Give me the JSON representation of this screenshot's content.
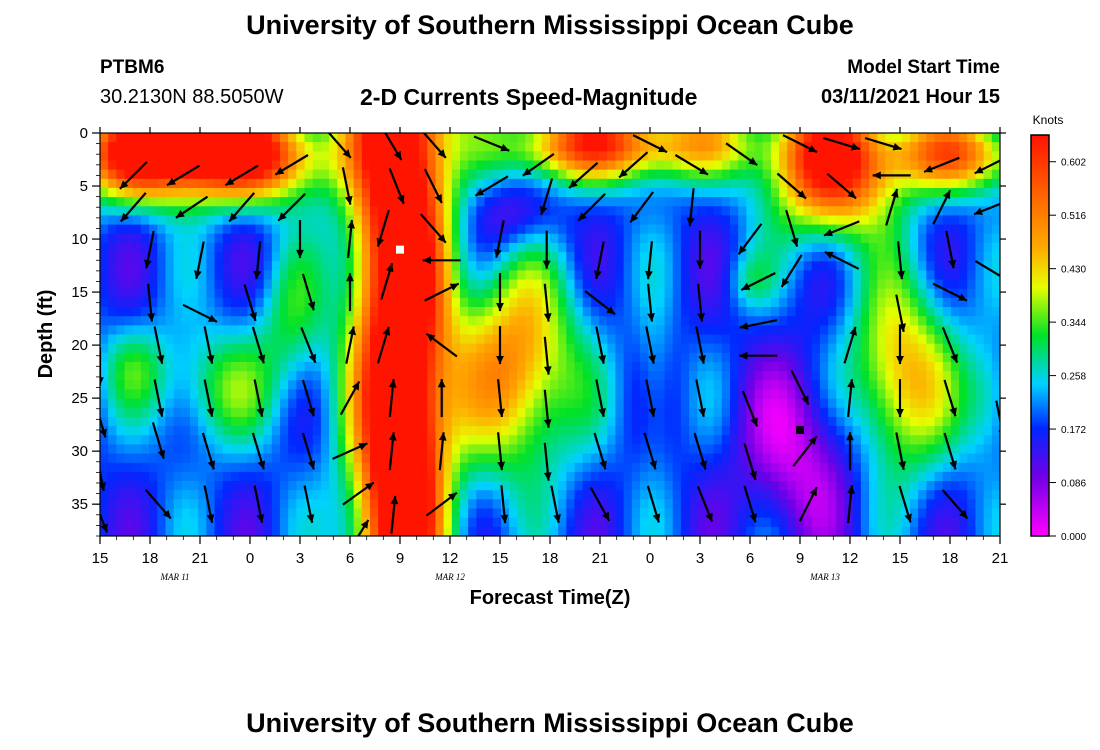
{
  "header": {
    "title": "University of Southern Mississippi Ocean Cube",
    "station_id": "PTBM6",
    "station_coords": "30.2130N 88.5050W",
    "plot_title": "2-D Currents Speed-Magnitude",
    "model_start_label": "Model Start Time",
    "model_start_time": "03/11/2021 Hour 15"
  },
  "footer": {
    "title": "University of Southern Mississippi Ocean Cube"
  },
  "chart_data": {
    "type": "heatmap",
    "title": "2-D Currents Speed-Magnitude",
    "xlabel": "Forecast Time(Z)",
    "ylabel": "Depth (ft)",
    "x_range_hours": [
      0,
      54
    ],
    "x_ticks": [
      {
        "hour": 0,
        "label": "15"
      },
      {
        "hour": 3,
        "label": "18"
      },
      {
        "hour": 6,
        "label": "21"
      },
      {
        "hour": 9,
        "label": "0"
      },
      {
        "hour": 12,
        "label": "3"
      },
      {
        "hour": 15,
        "label": "6"
      },
      {
        "hour": 18,
        "label": "9"
      },
      {
        "hour": 21,
        "label": "12"
      },
      {
        "hour": 24,
        "label": "15"
      },
      {
        "hour": 27,
        "label": "18"
      },
      {
        "hour": 30,
        "label": "21"
      },
      {
        "hour": 33,
        "label": "0"
      },
      {
        "hour": 36,
        "label": "3"
      },
      {
        "hour": 39,
        "label": "6"
      },
      {
        "hour": 42,
        "label": "9"
      },
      {
        "hour": 45,
        "label": "12"
      },
      {
        "hour": 48,
        "label": "15"
      },
      {
        "hour": 51,
        "label": "18"
      },
      {
        "hour": 54,
        "label": "21"
      }
    ],
    "date_labels": [
      {
        "hour": 4.5,
        "label": "MAR 11"
      },
      {
        "hour": 21,
        "label": "MAR 12"
      },
      {
        "hour": 43.5,
        "label": "MAR 13"
      }
    ],
    "y_range": [
      0,
      38
    ],
    "y_ticks": [
      0,
      5,
      10,
      15,
      20,
      25,
      30,
      35
    ],
    "colorbar": {
      "title": "Knots",
      "min": 0.0,
      "max": 0.645,
      "tick_values": [
        0.0,
        0.086,
        0.172,
        0.258,
        0.344,
        0.43,
        0.516,
        0.602
      ],
      "tick_labels": [
        "0.000",
        "0.086",
        "0.172",
        "0.258",
        "0.344",
        "0.430",
        "0.516",
        "0.602"
      ]
    },
    "speed_features": [
      {
        "hour": 18.0,
        "depth": 8,
        "sx": 2.0,
        "sy": 60,
        "amp": 0.62
      },
      {
        "hour": 18.2,
        "depth": 30,
        "sx": 1.2,
        "sy": 6,
        "amp": 0.15
      },
      {
        "hour": 2.5,
        "depth": 2,
        "sx": 3.0,
        "sy": 3.0,
        "amp": 0.5
      },
      {
        "hour": 9.0,
        "depth": 2,
        "sx": 3.2,
        "sy": 3.0,
        "amp": 0.5
      },
      {
        "hour": 6.0,
        "depth": 1,
        "sx": 1.5,
        "sy": 2.0,
        "amp": 0.1
      },
      {
        "hour": 7.0,
        "depth": 24,
        "sx": 2.5,
        "sy": 4.0,
        "amp": 0.15
      },
      {
        "hour": 2.0,
        "depth": 22,
        "sx": 1.5,
        "sy": 3.0,
        "amp": 0.1
      },
      {
        "hour": 11.5,
        "depth": 18,
        "sx": 1.5,
        "sy": 5.0,
        "amp": 0.12
      },
      {
        "hour": 25.0,
        "depth": 22,
        "sx": 2.6,
        "sy": 7.0,
        "amp": 0.33
      },
      {
        "hour": 25.0,
        "depth": 8,
        "sx": 1.8,
        "sy": 2.5,
        "amp": -0.1
      },
      {
        "hour": 33.0,
        "depth": 1,
        "sx": 5.0,
        "sy": 2.5,
        "amp": 0.3
      },
      {
        "hour": 28.0,
        "depth": 1,
        "sx": 3.0,
        "sy": 2.5,
        "amp": 0.2
      },
      {
        "hour": 33.3,
        "depth": 24,
        "sx": 0.8,
        "sy": 5.0,
        "amp": 0.08
      },
      {
        "hour": 44.0,
        "depth": 3,
        "sx": 2.6,
        "sy": 4.5,
        "amp": 0.48
      },
      {
        "hour": 51.5,
        "depth": 2,
        "sx": 3.0,
        "sy": 2.5,
        "amp": 0.35
      },
      {
        "hour": 48.0,
        "depth": 23,
        "sx": 2.2,
        "sy": 6.5,
        "amp": 0.3
      },
      {
        "hour": 42.0,
        "depth": 30,
        "sx": 2.5,
        "sy": 6.0,
        "amp": -0.15
      },
      {
        "hour": 39.0,
        "depth": 14,
        "sx": 1.0,
        "sy": 2.0,
        "amp": 0.08
      },
      {
        "hour": 53.5,
        "depth": 25,
        "sx": 1.2,
        "sy": 4.0,
        "amp": 0.12
      }
    ],
    "vectors": [
      {
        "hour": 0,
        "depth": 22,
        "dx": 0.0,
        "dy": -1.0
      },
      {
        "hour": 0,
        "depth": 27,
        "dx": 0.3,
        "dy": -1.0
      },
      {
        "hour": 0,
        "depth": 32,
        "dx": 0.2,
        "dy": -1.0
      },
      {
        "hour": 0,
        "depth": 36,
        "dx": 0.4,
        "dy": -1.0
      },
      {
        "hour": 2,
        "depth": 4,
        "dx": -0.8,
        "dy": -0.8
      },
      {
        "hour": 2,
        "depth": 7,
        "dx": -0.7,
        "dy": -0.8
      },
      {
        "hour": 3,
        "depth": 11,
        "dx": -0.2,
        "dy": -1.0
      },
      {
        "hour": 3,
        "depth": 16,
        "dx": 0.1,
        "dy": -1.0
      },
      {
        "hour": 3.5,
        "depth": 20,
        "dx": 0.2,
        "dy": -1.0
      },
      {
        "hour": 3.5,
        "depth": 25,
        "dx": 0.2,
        "dy": -1.0
      },
      {
        "hour": 3.5,
        "depth": 29,
        "dx": 0.3,
        "dy": -1.0
      },
      {
        "hour": 3.5,
        "depth": 35,
        "dx": 0.7,
        "dy": -0.8
      },
      {
        "hour": 5,
        "depth": 4,
        "dx": -1.0,
        "dy": -0.6
      },
      {
        "hour": 5.5,
        "depth": 7,
        "dx": -0.9,
        "dy": -0.6
      },
      {
        "hour": 6,
        "depth": 12,
        "dx": -0.2,
        "dy": -1.0
      },
      {
        "hour": 6,
        "depth": 17,
        "dx": 0.8,
        "dy": -0.4
      },
      {
        "hour": 6.5,
        "depth": 20,
        "dx": 0.2,
        "dy": -1.0
      },
      {
        "hour": 6.5,
        "depth": 25,
        "dx": 0.2,
        "dy": -1.0
      },
      {
        "hour": 6.5,
        "depth": 30,
        "dx": 0.3,
        "dy": -1.0
      },
      {
        "hour": 6.5,
        "depth": 35,
        "dx": 0.2,
        "dy": -1.0
      },
      {
        "hour": 8.5,
        "depth": 4,
        "dx": -1.0,
        "dy": -0.6
      },
      {
        "hour": 8.5,
        "depth": 7,
        "dx": -0.7,
        "dy": -0.8
      },
      {
        "hour": 9.5,
        "depth": 12,
        "dx": -0.1,
        "dy": -1.0
      },
      {
        "hour": 9,
        "depth": 16,
        "dx": 0.3,
        "dy": -1.0
      },
      {
        "hour": 9.5,
        "depth": 20,
        "dx": 0.3,
        "dy": -1.0
      },
      {
        "hour": 9.5,
        "depth": 25,
        "dx": 0.2,
        "dy": -1.0
      },
      {
        "hour": 9.5,
        "depth": 30,
        "dx": 0.3,
        "dy": -1.0
      },
      {
        "hour": 9.5,
        "depth": 35,
        "dx": 0.2,
        "dy": -1.0
      },
      {
        "hour": 11.5,
        "depth": 3,
        "dx": -1.0,
        "dy": -0.6
      },
      {
        "hour": 11.5,
        "depth": 7,
        "dx": -0.7,
        "dy": -0.7
      },
      {
        "hour": 12,
        "depth": 10,
        "dx": 0.0,
        "dy": -1.0
      },
      {
        "hour": 12.5,
        "depth": 15,
        "dx": 0.3,
        "dy": -1.0
      },
      {
        "hour": 12.5,
        "depth": 20,
        "dx": 0.4,
        "dy": -1.0
      },
      {
        "hour": 12.5,
        "depth": 25,
        "dx": 0.3,
        "dy": -1.0
      },
      {
        "hour": 12.5,
        "depth": 30,
        "dx": 0.3,
        "dy": -1.0
      },
      {
        "hour": 12.5,
        "depth": 35,
        "dx": 0.2,
        "dy": -1.0
      },
      {
        "hour": 14.3,
        "depth": 1,
        "dx": 0.7,
        "dy": -0.8
      },
      {
        "hour": 14.8,
        "depth": 5,
        "dx": 0.2,
        "dy": -1.0
      },
      {
        "hour": 15.0,
        "depth": 10,
        "dx": 0.1,
        "dy": 1.0
      },
      {
        "hour": 15.0,
        "depth": 15,
        "dx": 0.0,
        "dy": 1.0
      },
      {
        "hour": 15.0,
        "depth": 20,
        "dx": 0.2,
        "dy": 1.0
      },
      {
        "hour": 15.0,
        "depth": 25,
        "dx": 0.5,
        "dy": 0.9
      },
      {
        "hour": 15.0,
        "depth": 30,
        "dx": 0.9,
        "dy": 0.4
      },
      {
        "hour": 15.5,
        "depth": 34,
        "dx": 0.7,
        "dy": 0.5
      },
      {
        "hour": 15.5,
        "depth": 38,
        "dx": 0.5,
        "dy": 0.8
      },
      {
        "hour": 17.5,
        "depth": 1,
        "dx": 0.6,
        "dy": -1.0
      },
      {
        "hour": 17.8,
        "depth": 5,
        "dx": 0.4,
        "dy": -1.0
      },
      {
        "hour": 17.0,
        "depth": 9,
        "dx": -0.3,
        "dy": -1.0
      },
      {
        "hour": 17.2,
        "depth": 14,
        "dx": 0.3,
        "dy": 1.0
      },
      {
        "hour": 17.0,
        "depth": 20,
        "dx": 0.3,
        "dy": 1.0
      },
      {
        "hour": 17.5,
        "depth": 25,
        "dx": 0.1,
        "dy": 1.0
      },
      {
        "hour": 17.5,
        "depth": 30,
        "dx": 0.1,
        "dy": 1.0
      },
      {
        "hour": 17.6,
        "depth": 36,
        "dx": 0.1,
        "dy": 1.0
      },
      {
        "hour": 20.0,
        "depth": 1,
        "dx": 0.7,
        "dy": -0.8
      },
      {
        "hour": 20.0,
        "depth": 5,
        "dx": 0.5,
        "dy": -1.0
      },
      {
        "hour": 20.0,
        "depth": 9,
        "dx": 0.7,
        "dy": -0.8
      },
      {
        "hour": 20.5,
        "depth": 12,
        "dx": -1.0,
        "dy": 0.0
      },
      {
        "hour": 20.5,
        "depth": 15,
        "dx": 1.0,
        "dy": 0.5
      },
      {
        "hour": 20.5,
        "depth": 20,
        "dx": -0.8,
        "dy": 0.6
      },
      {
        "hour": 20.5,
        "depth": 25,
        "dx": 0.0,
        "dy": 1.0
      },
      {
        "hour": 20.5,
        "depth": 30,
        "dx": 0.1,
        "dy": 1.0
      },
      {
        "hour": 20.5,
        "depth": 35,
        "dx": 0.8,
        "dy": 0.6
      },
      {
        "hour": 23.5,
        "depth": 1,
        "dx": 1.0,
        "dy": -0.4
      },
      {
        "hour": 23.5,
        "depth": 5,
        "dx": -1.0,
        "dy": -0.6
      },
      {
        "hour": 24.0,
        "depth": 10,
        "dx": -0.2,
        "dy": -1.0
      },
      {
        "hour": 24.0,
        "depth": 15,
        "dx": 0.0,
        "dy": -1.0
      },
      {
        "hour": 24.0,
        "depth": 20,
        "dx": 0.0,
        "dy": -1.0
      },
      {
        "hour": 24.0,
        "depth": 25,
        "dx": 0.1,
        "dy": -1.0
      },
      {
        "hour": 24.0,
        "depth": 30,
        "dx": 0.1,
        "dy": -1.0
      },
      {
        "hour": 24.2,
        "depth": 35,
        "dx": 0.1,
        "dy": -1.0
      },
      {
        "hour": 26.3,
        "depth": 3,
        "dx": -1.0,
        "dy": -0.7
      },
      {
        "hour": 26.8,
        "depth": 6,
        "dx": -0.3,
        "dy": -1.0
      },
      {
        "hour": 26.8,
        "depth": 11,
        "dx": 0.0,
        "dy": -1.0
      },
      {
        "hour": 26.8,
        "depth": 16,
        "dx": 0.1,
        "dy": -1.0
      },
      {
        "hour": 26.8,
        "depth": 21,
        "dx": 0.1,
        "dy": -1.0
      },
      {
        "hour": 26.8,
        "depth": 26,
        "dx": 0.1,
        "dy": -1.0
      },
      {
        "hour": 26.8,
        "depth": 31,
        "dx": 0.1,
        "dy": -1.0
      },
      {
        "hour": 27.3,
        "depth": 35,
        "dx": 0.2,
        "dy": -1.0
      },
      {
        "hour": 29.0,
        "depth": 4,
        "dx": -0.9,
        "dy": -0.8
      },
      {
        "hour": 29.5,
        "depth": 7,
        "dx": -0.8,
        "dy": -0.8
      },
      {
        "hour": 30.0,
        "depth": 12,
        "dx": -0.2,
        "dy": -1.0
      },
      {
        "hour": 30.0,
        "depth": 16,
        "dx": 0.9,
        "dy": -0.7
      },
      {
        "hour": 30.0,
        "depth": 20,
        "dx": 0.2,
        "dy": -1.0
      },
      {
        "hour": 30.0,
        "depth": 25,
        "dx": 0.2,
        "dy": -1.0
      },
      {
        "hour": 30.0,
        "depth": 30,
        "dx": 0.3,
        "dy": -1.0
      },
      {
        "hour": 30.0,
        "depth": 35,
        "dx": 0.5,
        "dy": -0.9
      },
      {
        "hour": 33.0,
        "depth": 1,
        "dx": 1.0,
        "dy": -0.5
      },
      {
        "hour": 32.0,
        "depth": 3,
        "dx": -0.9,
        "dy": -0.8
      },
      {
        "hour": 32.5,
        "depth": 7,
        "dx": -0.6,
        "dy": -0.8
      },
      {
        "hour": 33.0,
        "depth": 12,
        "dx": -0.1,
        "dy": -1.0
      },
      {
        "hour": 33.0,
        "depth": 16,
        "dx": 0.1,
        "dy": -1.0
      },
      {
        "hour": 33.0,
        "depth": 20,
        "dx": 0.2,
        "dy": -1.0
      },
      {
        "hour": 33.0,
        "depth": 25,
        "dx": 0.2,
        "dy": -1.0
      },
      {
        "hour": 33.0,
        "depth": 30,
        "dx": 0.3,
        "dy": -1.0
      },
      {
        "hour": 33.2,
        "depth": 35,
        "dx": 0.3,
        "dy": -1.0
      },
      {
        "hour": 35.5,
        "depth": 3,
        "dx": 1.0,
        "dy": -0.6
      },
      {
        "hour": 35.5,
        "depth": 7,
        "dx": -0.1,
        "dy": -1.0
      },
      {
        "hour": 36.0,
        "depth": 11,
        "dx": 0.0,
        "dy": -1.0
      },
      {
        "hour": 36.0,
        "depth": 16,
        "dx": 0.1,
        "dy": -1.0
      },
      {
        "hour": 36.0,
        "depth": 20,
        "dx": 0.2,
        "dy": -1.0
      },
      {
        "hour": 36.0,
        "depth": 25,
        "dx": 0.2,
        "dy": -1.0
      },
      {
        "hour": 36.0,
        "depth": 30,
        "dx": 0.3,
        "dy": -1.0
      },
      {
        "hour": 36.3,
        "depth": 35,
        "dx": 0.4,
        "dy": -1.0
      },
      {
        "hour": 38.5,
        "depth": 2,
        "dx": 1.0,
        "dy": -0.7
      },
      {
        "hour": 39.0,
        "depth": 10,
        "dx": -0.6,
        "dy": -0.8
      },
      {
        "hour": 39.5,
        "depth": 14,
        "dx": -1.0,
        "dy": -0.5
      },
      {
        "hour": 39.5,
        "depth": 18,
        "dx": -1.0,
        "dy": -0.2
      },
      {
        "hour": 39.5,
        "depth": 21,
        "dx": -1.0,
        "dy": 0.0
      },
      {
        "hour": 39.0,
        "depth": 26,
        "dx": 0.4,
        "dy": -1.0
      },
      {
        "hour": 39.0,
        "depth": 31,
        "dx": 0.3,
        "dy": -1.0
      },
      {
        "hour": 39.0,
        "depth": 35,
        "dx": 0.3,
        "dy": -1.0
      },
      {
        "hour": 42.0,
        "depth": 1,
        "dx": 1.0,
        "dy": -0.5
      },
      {
        "hour": 41.5,
        "depth": 5,
        "dx": 0.8,
        "dy": -0.7
      },
      {
        "hour": 41.5,
        "depth": 9,
        "dx": 0.3,
        "dy": -1.0
      },
      {
        "hour": 41.5,
        "depth": 13,
        "dx": -0.5,
        "dy": -0.8
      },
      {
        "hour": 42.0,
        "depth": 24,
        "dx": 0.5,
        "dy": -1.0
      },
      {
        "hour": 42.3,
        "depth": 30,
        "dx": 0.7,
        "dy": 0.9
      },
      {
        "hour": 42.5,
        "depth": 35,
        "dx": 0.5,
        "dy": 1.0
      },
      {
        "hour": 44.5,
        "depth": 1,
        "dx": 1.0,
        "dy": -0.3
      },
      {
        "hour": 44.5,
        "depth": 5,
        "dx": 0.7,
        "dy": -0.6
      },
      {
        "hour": 44.5,
        "depth": 9,
        "dx": -1.0,
        "dy": -0.4
      },
      {
        "hour": 44.5,
        "depth": 12,
        "dx": -1.0,
        "dy": 0.5
      },
      {
        "hour": 45.0,
        "depth": 20,
        "dx": 0.3,
        "dy": 1.0
      },
      {
        "hour": 45.0,
        "depth": 25,
        "dx": 0.1,
        "dy": 1.0
      },
      {
        "hour": 45.0,
        "depth": 30,
        "dx": 0.0,
        "dy": 1.0
      },
      {
        "hour": 45.0,
        "depth": 35,
        "dx": 0.1,
        "dy": 1.0
      },
      {
        "hour": 47.0,
        "depth": 1,
        "dx": 1.0,
        "dy": -0.3
      },
      {
        "hour": 47.5,
        "depth": 4,
        "dx": -1.0,
        "dy": 0.0
      },
      {
        "hour": 47.5,
        "depth": 7,
        "dx": 0.3,
        "dy": 1.0
      },
      {
        "hour": 48.0,
        "depth": 12,
        "dx": 0.1,
        "dy": -1.0
      },
      {
        "hour": 48.0,
        "depth": 17,
        "dx": 0.2,
        "dy": -1.0
      },
      {
        "hour": 48.0,
        "depth": 20,
        "dx": 0.0,
        "dy": -1.0
      },
      {
        "hour": 48.0,
        "depth": 25,
        "dx": 0.0,
        "dy": -1.0
      },
      {
        "hour": 48.0,
        "depth": 30,
        "dx": 0.2,
        "dy": -1.0
      },
      {
        "hour": 48.3,
        "depth": 35,
        "dx": 0.3,
        "dy": -1.0
      },
      {
        "hour": 50.5,
        "depth": 3,
        "dx": -1.0,
        "dy": -0.4
      },
      {
        "hour": 50.5,
        "depth": 7,
        "dx": 0.5,
        "dy": 1.0
      },
      {
        "hour": 51.0,
        "depth": 11,
        "dx": 0.2,
        "dy": -1.0
      },
      {
        "hour": 51.0,
        "depth": 15,
        "dx": 1.0,
        "dy": -0.5
      },
      {
        "hour": 51.0,
        "depth": 20,
        "dx": 0.4,
        "dy": -1.0
      },
      {
        "hour": 51.0,
        "depth": 25,
        "dx": 0.3,
        "dy": -1.0
      },
      {
        "hour": 51.0,
        "depth": 30,
        "dx": 0.3,
        "dy": -1.0
      },
      {
        "hour": 51.3,
        "depth": 35,
        "dx": 0.7,
        "dy": -0.8
      },
      {
        "hour": 53.5,
        "depth": 3,
        "dx": -1.0,
        "dy": -0.5
      },
      {
        "hour": 53.5,
        "depth": 7,
        "dx": -1.0,
        "dy": -0.4
      },
      {
        "hour": 53.5,
        "depth": 13,
        "dx": 1.0,
        "dy": -0.6
      },
      {
        "hour": 54.0,
        "depth": 27,
        "dx": 0.2,
        "dy": -1.0
      }
    ],
    "markers": [
      {
        "hour": 18.0,
        "depth": 11,
        "color": "#ffffff"
      },
      {
        "hour": 42.0,
        "depth": 28,
        "color": "#000000"
      }
    ]
  }
}
